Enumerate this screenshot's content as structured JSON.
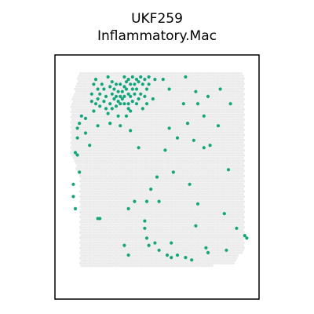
{
  "chart_data": {
    "type": "scatter",
    "title_lines": [
      "UKF259",
      "Inflammatory.Mac"
    ],
    "xlabel": "",
    "ylabel": "",
    "axes_ticks": false,
    "grid": false,
    "legend": "none",
    "xlim": [
      0,
      100
    ],
    "ylim": [
      0,
      100
    ],
    "colors": {
      "tissue": "#ebebeb",
      "highlight": "#15a57b",
      "frame": "#000000"
    },
    "tissue_outline": [
      [
        12,
        93
      ],
      [
        92,
        93
      ],
      [
        93,
        88
      ],
      [
        93,
        20
      ],
      [
        90,
        18
      ],
      [
        87,
        14
      ],
      [
        60,
        13
      ],
      [
        40,
        13
      ],
      [
        12,
        13
      ],
      [
        12,
        50
      ],
      [
        8,
        60
      ],
      [
        8,
        80
      ],
      [
        11,
        90
      ]
    ],
    "series": [
      {
        "color": "#15a57b",
        "points": [
          [
            19,
            88
          ],
          [
            20,
            90
          ],
          [
            21,
            86
          ],
          [
            22,
            84
          ],
          [
            21,
            82
          ],
          [
            18,
            84
          ],
          [
            20,
            80
          ],
          [
            22,
            79
          ],
          [
            24,
            81
          ],
          [
            25,
            83
          ],
          [
            23,
            88
          ],
          [
            24,
            86
          ],
          [
            26,
            91
          ],
          [
            27,
            87
          ],
          [
            28,
            84
          ],
          [
            29,
            86
          ],
          [
            30,
            83
          ],
          [
            31,
            81
          ],
          [
            32,
            83
          ],
          [
            33,
            85
          ],
          [
            34,
            87
          ],
          [
            35,
            89
          ],
          [
            36,
            90
          ],
          [
            37,
            88
          ],
          [
            35,
            86
          ],
          [
            33,
            82
          ],
          [
            32,
            80
          ],
          [
            30,
            79
          ],
          [
            29,
            82
          ],
          [
            31,
            85
          ],
          [
            34,
            83
          ],
          [
            36,
            84
          ],
          [
            38,
            86
          ],
          [
            39,
            88
          ],
          [
            40,
            90
          ],
          [
            38,
            91
          ],
          [
            34,
            91
          ],
          [
            32,
            88
          ],
          [
            30,
            88
          ],
          [
            28,
            89
          ],
          [
            36,
            80
          ],
          [
            34,
            80
          ],
          [
            37,
            83
          ],
          [
            39,
            84
          ],
          [
            41,
            89
          ],
          [
            42,
            91
          ],
          [
            43,
            88
          ],
          [
            44,
            90
          ],
          [
            45,
            86
          ],
          [
            40,
            86
          ],
          [
            41,
            82
          ],
          [
            38,
            81
          ],
          [
            27,
            80
          ],
          [
            25,
            78
          ],
          [
            26,
            76
          ],
          [
            28,
            78
          ],
          [
            42,
            84
          ],
          [
            46,
            88
          ],
          [
            46,
            91
          ],
          [
            40,
            80
          ],
          [
            19,
            77
          ],
          [
            18,
            81
          ],
          [
            36,
            78
          ],
          [
            44,
            83
          ],
          [
            45,
            80
          ],
          [
            43,
            78
          ],
          [
            37,
            77
          ],
          [
            35,
            75
          ],
          [
            12,
            72
          ],
          [
            13,
            75
          ],
          [
            11,
            70
          ],
          [
            15,
            74
          ],
          [
            15,
            68
          ],
          [
            11,
            59
          ],
          [
            12,
            52
          ],
          [
            9,
            47
          ],
          [
            9,
            42
          ],
          [
            10,
            37
          ],
          [
            10,
            60
          ],
          [
            17,
            63
          ],
          [
            11,
            66
          ],
          [
            21,
            71
          ],
          [
            31,
            75
          ],
          [
            27,
            72
          ],
          [
            32,
            71
          ],
          [
            37,
            69
          ],
          [
            48,
            82
          ],
          [
            49,
            90
          ],
          [
            53,
            90
          ],
          [
            56,
            86
          ],
          [
            64,
            91
          ],
          [
            69,
            85
          ],
          [
            63,
            80
          ],
          [
            70,
            80
          ],
          [
            75,
            83
          ],
          [
            81,
            86
          ],
          [
            86,
            80
          ],
          [
            73,
            75
          ],
          [
            56,
            70
          ],
          [
            65,
            72
          ],
          [
            80,
            71
          ],
          [
            54,
            61
          ],
          [
            60,
            66
          ],
          [
            68,
            65
          ],
          [
            73,
            62
          ],
          [
            41,
            62
          ],
          [
            50,
            50
          ],
          [
            47,
            45
          ],
          [
            45,
            40
          ],
          [
            44,
            32
          ],
          [
            39,
            40
          ],
          [
            36,
            37
          ],
          [
            22,
            33
          ],
          [
            21,
            33
          ],
          [
            51,
            40
          ],
          [
            58,
            52
          ],
          [
            66,
            47
          ],
          [
            70,
            39
          ],
          [
            69,
            30
          ],
          [
            76,
            63
          ],
          [
            85,
            53
          ],
          [
            83,
            35
          ],
          [
            74,
            21
          ],
          [
            84,
            20
          ],
          [
            89,
            29
          ],
          [
            94,
            25
          ],
          [
            93,
            26
          ],
          [
            55,
            18
          ],
          [
            57,
            17
          ],
          [
            51,
            20
          ],
          [
            44,
            29
          ],
          [
            45,
            25
          ],
          [
            46,
            22
          ],
          [
            49,
            23
          ],
          [
            57,
            23
          ],
          [
            60,
            18
          ],
          [
            64,
            17
          ],
          [
            67,
            16
          ],
          [
            36,
            18
          ],
          [
            34,
            22
          ],
          [
            75,
            19
          ]
        ]
      }
    ]
  }
}
